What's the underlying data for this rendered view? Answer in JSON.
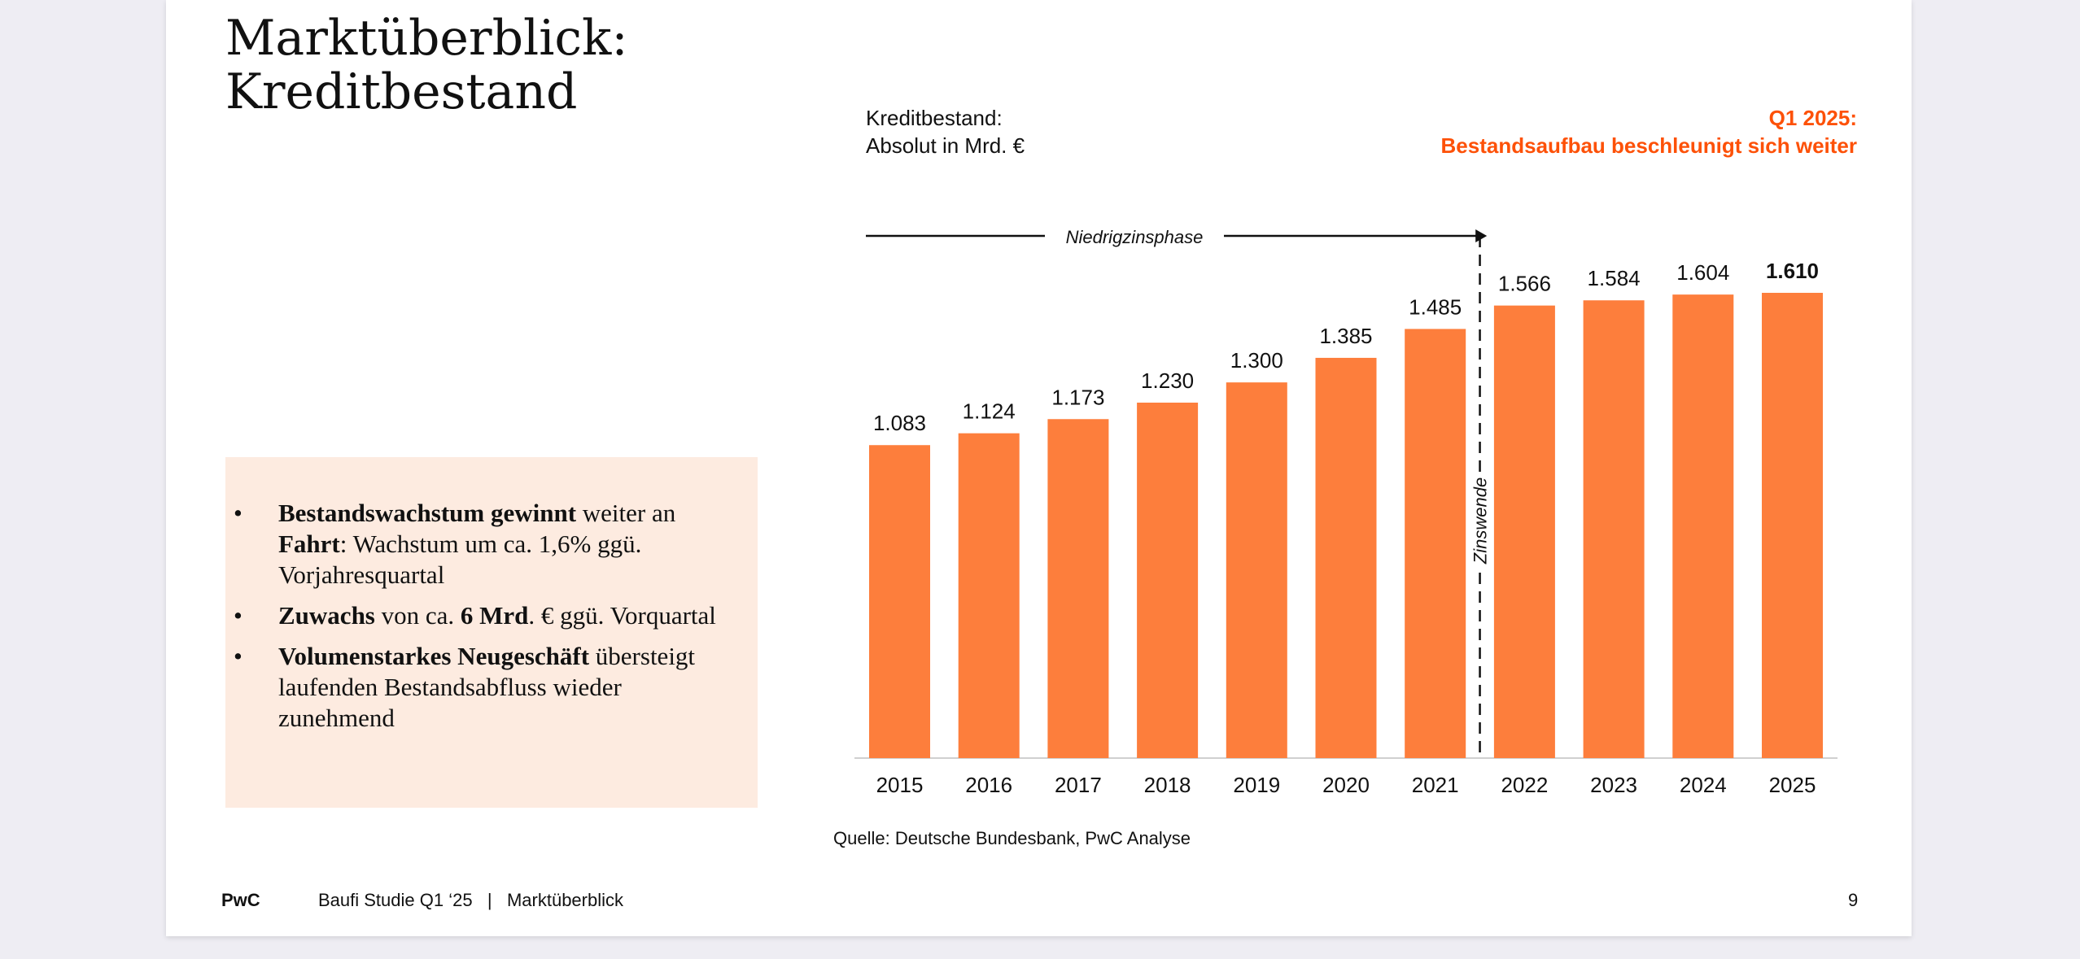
{
  "title_lines": [
    "Marktüberblick:",
    "Kreditbestand"
  ],
  "chart_subtitle_lines": [
    "Kreditbestand:",
    "Absolut in Mrd. €"
  ],
  "headline_lines": [
    "Q1 2025:",
    "Bestandsaufbau beschleunigt sich weiter"
  ],
  "bullets": [
    {
      "parts": [
        {
          "t": "Bestandswachstum gewinnt",
          "b": true
        },
        {
          "t": " weiter an ",
          "b": false
        },
        {
          "t": "Fahrt",
          "b": true
        },
        {
          "t": ": Wachstum um ca. 1,6% ggü. Vorjahresquartal",
          "b": false
        }
      ]
    },
    {
      "parts": [
        {
          "t": "Zuwachs",
          "b": true
        },
        {
          "t": " von ca. ",
          "b": false
        },
        {
          "t": "6 Mrd",
          "b": true
        },
        {
          "t": ". € ggü. Vorquartal",
          "b": false
        }
      ]
    },
    {
      "parts": [
        {
          "t": "Volumenstarkes Neugeschäft",
          "b": true
        },
        {
          "t": " übersteigt laufenden Bestandsabfluss wieder zunehmend",
          "b": false
        }
      ]
    }
  ],
  "bullet_symbol": "•",
  "source": "Quelle: Deutsche Bundesbank, PwC Analyse",
  "footer": {
    "brand": "PwC",
    "text": "Baufi Studie Q1 ‘25   |   Marktüberblick",
    "page": "9"
  },
  "colors": {
    "bar": "#fd7e3c",
    "accent": "#fd5108",
    "box": "#fdebe0"
  },
  "chart_data": {
    "type": "bar",
    "categories": [
      "2015",
      "2016",
      "2017",
      "2018",
      "2019",
      "2020",
      "2021",
      "2022",
      "2023",
      "2024",
      "2025"
    ],
    "values": [
      1083,
      1124,
      1173,
      1230,
      1300,
      1385,
      1485,
      1566,
      1584,
      1604,
      1610
    ],
    "value_labels": [
      "1.083",
      "1.124",
      "1.173",
      "1.230",
      "1.300",
      "1.385",
      "1.485",
      "1.566",
      "1.584",
      "1.604",
      "1.610"
    ],
    "highlight_last_label_bold": true,
    "ylim": [
      0,
      1610
    ],
    "grid": false,
    "annotations": {
      "phase_arrow_label": "Niedrigzinsphase",
      "phase_arrow_span": [
        "2015",
        "2021"
      ],
      "divider_label": "Zinswende",
      "divider_between": [
        "2021",
        "2022"
      ]
    }
  }
}
